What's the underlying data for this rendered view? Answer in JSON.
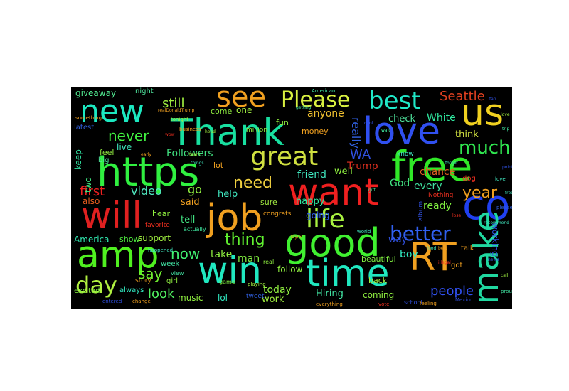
{
  "words": {
    "thank": {
      "text": "Thank",
      "color": "#18e0a0"
    },
    "new": {
      "text": "new",
      "color": "#1ce8c0"
    },
    "see": {
      "text": "see",
      "color": "#f0a020"
    },
    "please": {
      "text": "Please",
      "color": "#d8f040"
    },
    "best": {
      "text": "best",
      "color": "#20e8c8"
    },
    "us": {
      "text": "us",
      "color": "#f0d020"
    },
    "love": {
      "text": "love",
      "color": "#3050f0"
    },
    "https": {
      "text": "https",
      "color": "#30f040"
    },
    "free": {
      "text": "free",
      "color": "#30e828"
    },
    "want": {
      "text": "want",
      "color": "#f02020"
    },
    "co": {
      "text": "co",
      "color": "#2040f0"
    },
    "will": {
      "text": "will",
      "color": "#e02020"
    },
    "job": {
      "text": "job",
      "color": "#f0a020"
    },
    "good": {
      "text": "good",
      "color": "#40f030"
    },
    "amp": {
      "text": "amp",
      "color": "#50f020"
    },
    "win": {
      "text": "win",
      "color": "#20e8c0"
    },
    "time": {
      "text": "time",
      "color": "#20e8c0"
    },
    "rt": {
      "text": "RT",
      "color": "#f0a020"
    },
    "make": {
      "text": "make",
      "color": "#20d8a0"
    },
    "great": {
      "text": "great",
      "color": "#d0e040"
    },
    "life": {
      "text": "life",
      "color": "#a8f040"
    },
    "much": {
      "text": "much",
      "color": "#30e850"
    },
    "better": {
      "text": "better",
      "color": "#3060f0"
    },
    "day": {
      "text": "day",
      "color": "#b0f040"
    },
    "year": {
      "text": "year",
      "color": "#f0a020"
    },
    "seattle": {
      "text": "Seattle",
      "color": "#e04020"
    },
    "still": {
      "text": "still",
      "color": "#a0f040"
    },
    "giveaway": {
      "text": "giveaway",
      "color": "#50e890"
    },
    "never": {
      "text": "never",
      "color": "#40f040"
    },
    "first": {
      "text": "first",
      "color": "#f02020"
    },
    "video": {
      "text": "video",
      "color": "#50e8c0"
    },
    "need": {
      "text": "need",
      "color": "#f0d040"
    },
    "thing": {
      "text": "thing",
      "color": "#60f030"
    },
    "now": {
      "text": "now",
      "color": "#40f070"
    },
    "say": {
      "text": "say",
      "color": "#70f030"
    },
    "look": {
      "text": "look",
      "color": "#50f060"
    },
    "people": {
      "text": "people",
      "color": "#3050f0"
    },
    "followers": {
      "text": "Followers",
      "color": "#40e080"
    },
    "really": {
      "text": "really",
      "color": "#3060e0"
    },
    "wa": {
      "text": "WA",
      "color": "#3050e0"
    },
    "trump": {
      "text": "Trump",
      "color": "#e03020"
    },
    "white": {
      "text": "White",
      "color": "#30e8a0"
    },
    "chance": {
      "text": "chance",
      "color": "#e06020"
    },
    "anyone": {
      "text": "anyone",
      "color": "#f0c030"
    },
    "check": {
      "text": "check",
      "color": "#50e8a0"
    },
    "friend": {
      "text": "friend",
      "color": "#40e8c0"
    },
    "well": {
      "text": "well",
      "color": "#90f040"
    },
    "god": {
      "text": "God",
      "color": "#40e080"
    },
    "every": {
      "text": "every",
      "color": "#40e0a0"
    },
    "ready": {
      "text": "ready",
      "color": "#80f040"
    },
    "think": {
      "text": "think",
      "color": "#d0e040"
    },
    "go": {
      "text": "go",
      "color": "#90f040"
    },
    "also": {
      "text": "also",
      "color": "#f06020"
    },
    "two": {
      "text": "two",
      "color": "#40e880"
    },
    "keep": {
      "text": "keep",
      "color": "#30e0a0"
    },
    "help": {
      "text": "help",
      "color": "#40e8c0"
    },
    "said": {
      "text": "said",
      "color": "#f0a020"
    },
    "tell": {
      "text": "tell",
      "color": "#40e080"
    },
    "happy": {
      "text": "happy",
      "color": "#30e8a0"
    },
    "going": {
      "text": "going",
      "color": "#3060f0"
    },
    "boy": {
      "text": "boy",
      "color": "#30e8c0"
    },
    "way": {
      "text": "way",
      "color": "#3050e0"
    },
    "america": {
      "text": "America",
      "color": "#30e8b0"
    },
    "show": {
      "text": "show",
      "color": "#50f040"
    },
    "support": {
      "text": "support",
      "color": "#a0f040"
    },
    "take": {
      "text": "take",
      "color": "#90f040"
    },
    "man": {
      "text": "man",
      "color": "#80f040"
    },
    "today": {
      "text": "today",
      "color": "#90f040"
    },
    "hiring": {
      "text": "Hiring",
      "color": "#40e0a0"
    },
    "coming": {
      "text": "coming",
      "color": "#90f040"
    },
    "work": {
      "text": "work",
      "color": "#a0f040"
    },
    "music": {
      "text": "music",
      "color": "#90f040"
    },
    "lol": {
      "text": "lol",
      "color": "#30e8c0"
    },
    "follow": {
      "text": "follow",
      "color": "#90f040"
    },
    "working": {
      "text": "working",
      "color": "#3050e0"
    },
    "hear": {
      "text": "hear",
      "color": "#90f040"
    },
    "live": {
      "text": "live",
      "color": "#40e8c0"
    },
    "feel": {
      "text": "feel",
      "color": "#90e840"
    },
    "big": {
      "text": "big",
      "color": "#50e8a0"
    },
    "latest": {
      "text": "latest",
      "color": "#3060e0"
    },
    "night": {
      "text": "night",
      "color": "#50e8a0"
    },
    "money": {
      "text": "money",
      "color": "#f0a020"
    },
    "fun": {
      "text": "fun",
      "color": "#90f040"
    },
    "lot": {
      "text": "lot",
      "color": "#f0a020"
    },
    "come": {
      "text": "come",
      "color": "#90f040"
    },
    "one": {
      "text": "one",
      "color": "#a0f040"
    },
    "excited": {
      "text": "excited",
      "color": "#80f040"
    },
    "always": {
      "text": "always",
      "color": "#30e8c0"
    },
    "story": {
      "text": "story",
      "color": "#f0a020"
    },
    "girl": {
      "text": "girl",
      "color": "#90f040"
    },
    "week": {
      "text": "week",
      "color": "#40e0a0"
    },
    "beautiful": {
      "text": "beautiful",
      "color": "#80f040"
    },
    "back": {
      "text": "back",
      "color": "#a0f040"
    },
    "got": {
      "text": "got",
      "color": "#f0a020"
    },
    "talk": {
      "text": "talk",
      "color": "#f0a020"
    },
    "dog": {
      "text": "dog",
      "color": "#f03020"
    },
    "sure": {
      "text": "sure",
      "color": "#a0e840"
    },
    "know": {
      "text": "know",
      "color": "#40e8c0"
    },
    "favorite": {
      "text": "favorite",
      "color": "#f03020"
    },
    "nothing": {
      "text": "Nothing",
      "color": "#f03020"
    },
    "tweet": {
      "text": "tweet",
      "color": "#3060e0"
    },
    "million": {
      "text": "million",
      "color": "#90f040"
    },
    "album": {
      "text": "album",
      "color": "#3050e0"
    },
    "congrats": {
      "text": "congrats",
      "color": "#f0a020"
    },
    "actually": {
      "text": "actually",
      "color": "#40e8a0"
    },
    "view": {
      "text": "view",
      "color": "#40e0a0"
    },
    "real": {
      "text": "real",
      "color": "#90f040"
    },
    "happened": {
      "text": "happened",
      "color": "#40e8c0"
    },
    "game": {
      "text": "game",
      "color": "#80f040"
    },
    "school": {
      "text": "school",
      "color": "#3050e0"
    },
    "change": {
      "text": "change",
      "color": "#f0a020"
    },
    "entered": {
      "text": "entered",
      "color": "#3050e0"
    },
    "feeling": {
      "text": "feeling",
      "color": "#f0a020"
    },
    "proud": {
      "text": "proud",
      "color": "#40e0a0"
    },
    "business": {
      "text": "business",
      "color": "#f0a020"
    },
    "tonight": {
      "text": "tonight",
      "color": "#a0f040"
    },
    "world": {
      "text": "world",
      "color": "#40e8c0"
    },
    "playing": {
      "text": "playing",
      "color": "#a0f040"
    },
    "vote": {
      "text": "vote",
      "color": "#f03020"
    },
    "mexico": {
      "text": "Mexico",
      "color": "#3050e0"
    },
    "love_small": {
      "text": "love",
      "color": "#40e8c0"
    },
    "american": {
      "text": "American",
      "color": "#40e0a0"
    },
    "everything": {
      "text": "everything",
      "color": "#f0a020"
    },
    "please_small": {
      "text": "please",
      "color": "#3060e0"
    },
    "something": {
      "text": "something",
      "color": "#f0a020"
    },
    "love_tiny": {
      "text": "love",
      "color": "#a0f040"
    },
    "trip": {
      "text": "trip",
      "color": "#40e8a0"
    },
    "point": {
      "text": "point",
      "color": "#3050e0"
    },
    "food": {
      "text": "food",
      "color": "#40e8c0"
    },
    "best_small": {
      "text": "best",
      "color": "#f0a020"
    },
    "forget": {
      "text": "forget",
      "color": "#40e8c0"
    },
    "gift": {
      "text": "gift",
      "color": "#40e8a0"
    },
    "realdonaldtrump": {
      "text": "realDonaldTrump",
      "color": "#f0a020"
    },
    "cool": {
      "text": "cool",
      "color": "#3050e0"
    },
    "wait": {
      "text": "wait",
      "color": "#40e8a0"
    },
    "team": {
      "text": "team",
      "color": "#a0f040"
    },
    "early": {
      "text": "early",
      "color": "#f0a020"
    },
    "wow": {
      "text": "wow",
      "color": "#f03020"
    },
    "head": {
      "text": "head",
      "color": "#a0f040"
    },
    "thing_small": {
      "text": "things",
      "color": "#40e8c0"
    },
    "new_small": {
      "text": "news",
      "color": "#3060e0"
    },
    "call": {
      "text": "call",
      "color": "#a0f040"
    },
    "getting": {
      "text": "getting",
      "color": "#40e8a0"
    },
    "taylor": {
      "text": "Taylor",
      "color": "#f0a020"
    },
    "lose": {
      "text": "lose",
      "color": "#f03020"
    },
    "free_small": {
      "text": "freedom",
      "color": "#40e8c0"
    },
    "fan": {
      "text": "fan",
      "color": "#3050e0"
    },
    "illegal": {
      "text": "illegal",
      "color": "#f03020"
    },
    "recommend": {
      "text": "recommend",
      "color": "#40e8c0"
    }
  }
}
